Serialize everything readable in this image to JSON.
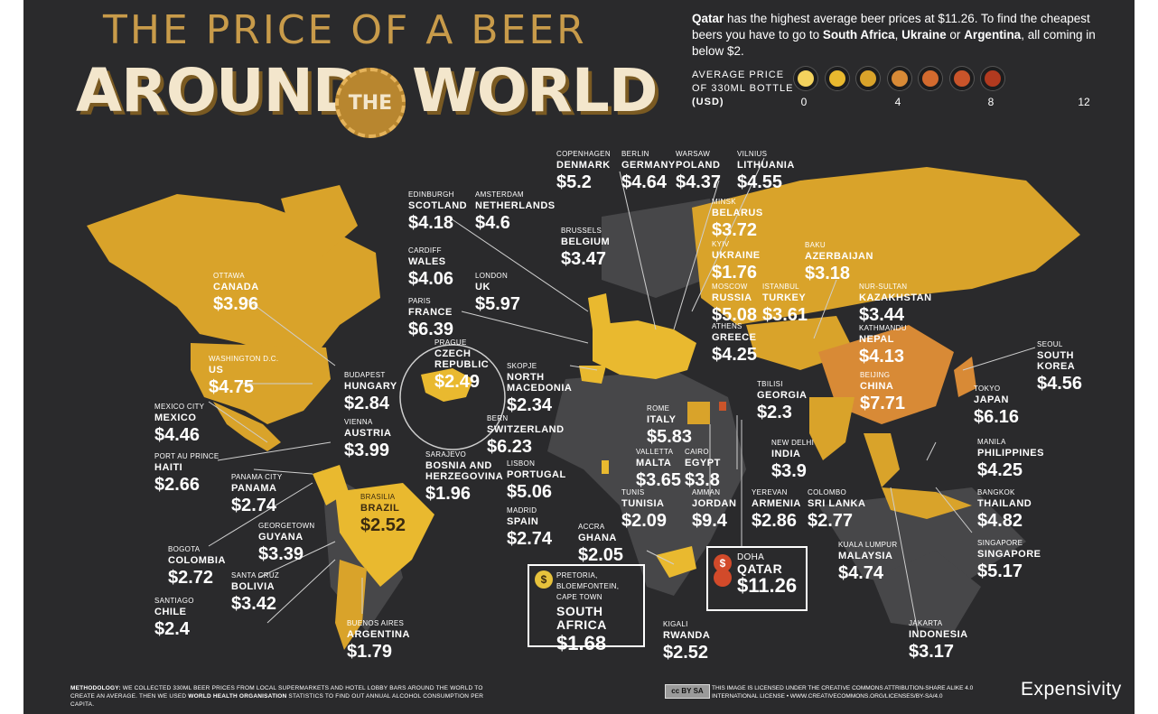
{
  "title": {
    "line1": "THE PRICE OF A BEER",
    "around": "AROUND",
    "the": "THE",
    "world": "WORLD"
  },
  "intro": {
    "part1_bold": "Qatar",
    "part2": " has the highest average beer prices at $11.26. To find the cheapest beers you have to go to ",
    "part3_bold": "South Africa",
    "part4": ", ",
    "part5_bold": "Ukraine",
    "part6": " or ",
    "part7_bold": "Argentina",
    "part8": ", all coming in below $2."
  },
  "legend": {
    "line1": "AVERAGE PRICE",
    "line2": "OF 330ML BOTTLE",
    "line3": "(USD)",
    "ticks": [
      "0",
      "4",
      "8",
      "12"
    ],
    "colors": [
      "#f4d35e",
      "#e9b92f",
      "#d9a32a",
      "#d88a36",
      "#d36a2e",
      "#c9542a",
      "#b23a1f"
    ]
  },
  "colors": {
    "background": "#2a2a2c",
    "land_nodata": "#474749",
    "accent": "#c89b4a"
  },
  "countries": [
    {
      "city": "OTTAWA",
      "country": "CANADA",
      "price": "$3.96"
    },
    {
      "city": "WASHINGTON D.C.",
      "country": "US",
      "price": "$4.75"
    },
    {
      "city": "MEXICO CITY",
      "country": "MEXICO",
      "price": "$4.46"
    },
    {
      "city": "PORT AU PRINCE",
      "country": "HAITI",
      "price": "$2.66"
    },
    {
      "city": "PANAMA CITY",
      "country": "PANAMA",
      "price": "$2.74"
    },
    {
      "city": "BOGOTA",
      "country": "COLOMBIA",
      "price": "$2.72"
    },
    {
      "city": "SANTIAGO",
      "country": "CHILE",
      "price": "$2.4"
    },
    {
      "city": "GEORGETOWN",
      "country": "GUYANA",
      "price": "$3.39"
    },
    {
      "city": "SANTA CRUZ",
      "country": "BOLIVIA",
      "price": "$3.42"
    },
    {
      "city": "BRASILIA",
      "country": "BRAZIL",
      "price": "$2.52"
    },
    {
      "city": "BUENOS AIRES",
      "country": "ARGENTINA",
      "price": "$1.79"
    },
    {
      "city": "EDINBURGH",
      "country": "SCOTLAND",
      "price": "$4.18"
    },
    {
      "city": "CARDIFF",
      "country": "WALES",
      "price": "$4.06"
    },
    {
      "city": "PARIS",
      "country": "FRANCE",
      "price": "$6.39"
    },
    {
      "city": "AMSTERDAM",
      "country": "NETHERLANDS",
      "price": "$4.6"
    },
    {
      "city": "LONDON",
      "country": "UK",
      "price": "$5.97"
    },
    {
      "city": "BRUSSELS",
      "country": "BELGIUM",
      "price": "$3.47"
    },
    {
      "city": "COPENHAGEN",
      "country": "DENMARK",
      "price": "$5.2"
    },
    {
      "city": "BERLIN",
      "country": "GERMANY",
      "price": "$4.64"
    },
    {
      "city": "WARSAW",
      "country": "POLAND",
      "price": "$4.37"
    },
    {
      "city": "VILNIUS",
      "country": "LITHUANIA",
      "price": "$4.55"
    },
    {
      "city": "MINSK",
      "country": "BELARUS",
      "price": "$3.72"
    },
    {
      "city": "KYIV",
      "country": "UKRAINE",
      "price": "$1.76"
    },
    {
      "city": "MOSCOW",
      "country": "RUSSIA",
      "price": "$5.08"
    },
    {
      "city": "ATHENS",
      "country": "GREECE",
      "price": "$4.25"
    },
    {
      "city": "BAKU",
      "country": "AZERBAIJAN",
      "price": "$3.18"
    },
    {
      "city": "ISTANBUL",
      "country": "TURKEY",
      "price": "$3.61"
    },
    {
      "city": "NUR-SULTAN",
      "country": "KAZAKHSTAN",
      "price": "$3.44"
    },
    {
      "city": "KATHMANDU",
      "country": "NEPAL",
      "price": "$4.13"
    },
    {
      "city": "PRAGUE",
      "country": "CZECH REPUBLIC",
      "price": "$2.49"
    },
    {
      "city": "BUDAPEST",
      "country": "HUNGARY",
      "price": "$2.84"
    },
    {
      "city": "VIENNA",
      "country": "AUSTRIA",
      "price": "$3.99"
    },
    {
      "city": "SARAJEVO",
      "country": "BOSNIA AND HERZEGOVINA",
      "price": "$1.96"
    },
    {
      "city": "SKOPJE",
      "country": "NORTH MACEDONIA",
      "price": "$2.34"
    },
    {
      "city": "BERN",
      "country": "SWITZERLAND",
      "price": "$6.23"
    },
    {
      "city": "LISBON",
      "country": "PORTUGAL",
      "price": "$5.06"
    },
    {
      "city": "MADRID",
      "country": "SPAIN",
      "price": "$2.74"
    },
    {
      "city": "ROME",
      "country": "ITALY",
      "price": "$5.83"
    },
    {
      "city": "VALLETTA",
      "country": "MALTA",
      "price": "$3.65"
    },
    {
      "city": "TUNIS",
      "country": "TUNISIA",
      "price": "$2.09"
    },
    {
      "city": "CAIRO",
      "country": "EGYPT",
      "price": "$3.8"
    },
    {
      "city": "AMMAN",
      "country": "JORDAN",
      "price": "$9.4"
    },
    {
      "city": "TBILISI",
      "country": "GEORGIA",
      "price": "$2.3"
    },
    {
      "city": "YEREVAN",
      "country": "ARMENIA",
      "price": "$2.86"
    },
    {
      "city": "ACCRA",
      "country": "GHANA",
      "price": "$2.05"
    },
    {
      "city": "KIGALI",
      "country": "RWANDA",
      "price": "$2.52"
    },
    {
      "city": "BEIJING",
      "country": "CHINA",
      "price": "$7.71"
    },
    {
      "city": "SEOUL",
      "country": "SOUTH KOREA",
      "price": "$4.56"
    },
    {
      "city": "TOKYO",
      "country": "JAPAN",
      "price": "$6.16"
    },
    {
      "city": "NEW DELHI",
      "country": "INDIA",
      "price": "$3.9"
    },
    {
      "city": "MANILA",
      "country": "PHILIPPINES",
      "price": "$4.25"
    },
    {
      "city": "COLOMBO",
      "country": "SRI LANKA",
      "price": "$2.77"
    },
    {
      "city": "BANGKOK",
      "country": "THAILAND",
      "price": "$4.82"
    },
    {
      "city": "KUALA LUMPUR",
      "country": "MALAYSIA",
      "price": "$4.74"
    },
    {
      "city": "SINGAPORE",
      "country": "SINGAPORE",
      "price": "$5.17"
    },
    {
      "city": "JAKARTA",
      "country": "INDONESIA",
      "price": "$3.17"
    }
  ],
  "callouts": {
    "south_africa": {
      "city": "PRETORIA, BLOEMFONTEIN, CAPE TOWN",
      "country": "SOUTH AFRICA",
      "price": "$1.68",
      "coin": "$"
    },
    "qatar": {
      "city": "DOHA",
      "country": "QATAR",
      "price": "$11.26",
      "coin": "$"
    }
  },
  "footer": {
    "method_bold": "METHODOLOGY:",
    "method_text": " WE COLLECTED 330ML BEER PRICES FROM LOCAL SUPERMARKETS AND HOTEL LOBBY BARS AROUND THE WORLD TO CREATE AN AVERAGE. THEN WE USED ",
    "method_bold2": "WORLD HEALTH ORGANISATION",
    "method_text2": " STATISTICS TO FIND OUT ANNUAL ALCOHOL CONSUMPTION PER CAPITA.",
    "cc_badge": "cc BY SA",
    "license": "THIS IMAGE IS LICENSED UNDER THE CREATIVE COMMONS ATTRIBUTION-SHARE ALIKE 4.0 INTERNATIONAL LICENSE • WWW.CREATIVECOMMONS.ORG/LICENSES/BY-SA/4.0",
    "brand": "Expensivity"
  }
}
